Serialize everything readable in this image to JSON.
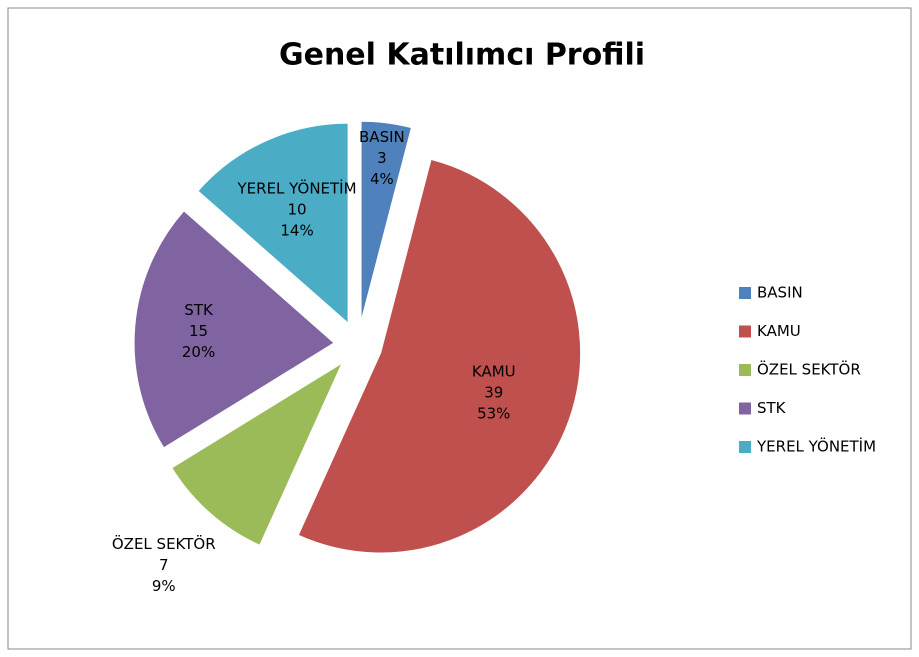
{
  "chart_data": {
    "type": "pie",
    "title": "Genel Katılımcı Profili",
    "categories": [
      "BASIN",
      "KAMU",
      "ÖZEL SEKTÖR",
      "STK",
      "YEREL YÖNETİM"
    ],
    "values": [
      3,
      39,
      7,
      15,
      10
    ],
    "percent_labels": [
      "4%",
      "53%",
      "9%",
      "20%",
      "14%"
    ],
    "colors": [
      "#4f81bd",
      "#c0504d",
      "#9bbb59",
      "#8064a2",
      "#4bacc6"
    ],
    "legend": "right"
  }
}
